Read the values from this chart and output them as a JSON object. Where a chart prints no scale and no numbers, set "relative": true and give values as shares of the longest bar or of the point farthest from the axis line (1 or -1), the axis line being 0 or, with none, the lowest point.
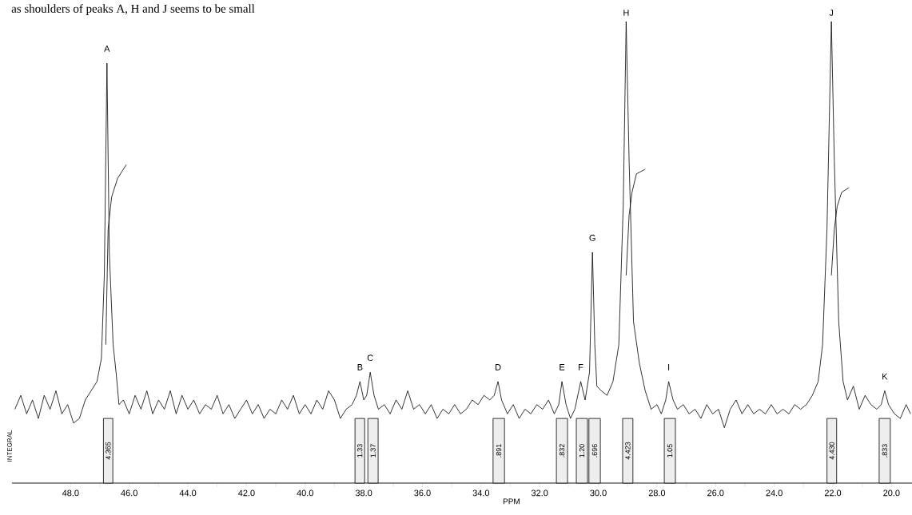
{
  "chart_data": {
    "type": "line",
    "relative": true,
    "title": "as shoulders of peaks A, H and J seems to be small",
    "xlabel": "PPM",
    "xlim": [
      50,
      19.3
    ],
    "xticks": [
      {
        "value": 48,
        "label": "48.0"
      },
      {
        "value": 47,
        "label": null
      },
      {
        "value": 46,
        "label": "46.0"
      },
      {
        "value": 45,
        "label": null
      },
      {
        "value": 44,
        "label": "44.0"
      },
      {
        "value": 43,
        "label": null
      },
      {
        "value": 42,
        "label": "42.0"
      },
      {
        "value": 41,
        "label": null
      },
      {
        "value": 40,
        "label": "40.0"
      },
      {
        "value": 39,
        "label": null
      },
      {
        "value": 38,
        "label": "38.0"
      },
      {
        "value": 37,
        "label": null
      },
      {
        "value": 36,
        "label": "36.0"
      },
      {
        "value": 35,
        "label": null
      },
      {
        "value": 34,
        "label": "34.0"
      },
      {
        "value": 33,
        "label": null
      },
      {
        "value": 32,
        "label": "32.0"
      },
      {
        "value": 31,
        "label": null
      },
      {
        "value": 30,
        "label": "30.0"
      },
      {
        "value": 29,
        "label": null
      },
      {
        "value": 28,
        "label": "28.0"
      },
      {
        "value": 27,
        "label": null
      },
      {
        "value": 26,
        "label": "26.0"
      },
      {
        "value": 25,
        "label": null
      },
      {
        "value": 24,
        "label": "24.0"
      },
      {
        "value": 23,
        "label": null
      },
      {
        "value": 22,
        "label": "22.0"
      },
      {
        "value": 21,
        "label": null
      },
      {
        "value": 20,
        "label": "20.0"
      }
    ],
    "tick_labels": "x",
    "series": [
      {
        "color": "#000000",
        "x": [
          49.9,
          49.7,
          49.5,
          49.3,
          49.1,
          48.9,
          48.7,
          48.5,
          48.3,
          48.1,
          47.9,
          47.7,
          47.5,
          47.3,
          47.1,
          46.95,
          46.85,
          46.76,
          46.68,
          46.55,
          46.45,
          46.35,
          46.2,
          46.0,
          45.8,
          45.6,
          45.4,
          45.2,
          45.0,
          44.8,
          44.6,
          44.4,
          44.2,
          44.0,
          43.8,
          43.6,
          43.4,
          43.2,
          43.0,
          42.8,
          42.6,
          42.4,
          42.2,
          42.0,
          41.8,
          41.6,
          41.4,
          41.2,
          41.0,
          40.8,
          40.6,
          40.4,
          40.2,
          40.0,
          39.8,
          39.6,
          39.4,
          39.2,
          39.0,
          38.8,
          38.6,
          38.4,
          38.25,
          38.13,
          38.0,
          37.9,
          37.78,
          37.65,
          37.5,
          37.3,
          37.1,
          36.9,
          36.7,
          36.5,
          36.3,
          36.1,
          35.9,
          35.7,
          35.5,
          35.3,
          35.1,
          34.9,
          34.7,
          34.5,
          34.3,
          34.1,
          33.9,
          33.7,
          33.55,
          33.42,
          33.3,
          33.1,
          32.9,
          32.7,
          32.5,
          32.3,
          32.1,
          31.9,
          31.7,
          31.5,
          31.35,
          31.24,
          31.1,
          30.95,
          30.8,
          30.6,
          30.45,
          30.3,
          30.2,
          30.12,
          30.05,
          29.9,
          29.7,
          29.5,
          29.3,
          29.15,
          29.05,
          28.95,
          28.8,
          28.6,
          28.4,
          28.2,
          28.0,
          27.85,
          27.7,
          27.6,
          27.45,
          27.3,
          27.1,
          26.9,
          26.7,
          26.5,
          26.3,
          26.1,
          25.9,
          25.7,
          25.5,
          25.3,
          25.1,
          24.9,
          24.7,
          24.5,
          24.3,
          24.1,
          23.9,
          23.7,
          23.5,
          23.3,
          23.1,
          22.9,
          22.7,
          22.5,
          22.35,
          22.2,
          22.05,
          21.95,
          21.8,
          21.65,
          21.5,
          21.3,
          21.1,
          20.9,
          20.7,
          20.5,
          20.35,
          20.23,
          20.1,
          19.9,
          19.7,
          19.5,
          19.35
        ],
        "values": [
          0.16,
          0.19,
          0.15,
          0.18,
          0.14,
          0.19,
          0.16,
          0.2,
          0.15,
          0.17,
          0.13,
          0.14,
          0.18,
          0.2,
          0.22,
          0.27,
          0.45,
          0.91,
          0.5,
          0.3,
          0.24,
          0.17,
          0.18,
          0.15,
          0.19,
          0.16,
          0.2,
          0.15,
          0.18,
          0.16,
          0.2,
          0.15,
          0.19,
          0.16,
          0.18,
          0.15,
          0.17,
          0.16,
          0.19,
          0.15,
          0.17,
          0.14,
          0.16,
          0.18,
          0.15,
          0.17,
          0.14,
          0.16,
          0.15,
          0.18,
          0.16,
          0.19,
          0.15,
          0.17,
          0.15,
          0.18,
          0.16,
          0.2,
          0.18,
          0.14,
          0.16,
          0.17,
          0.19,
          0.22,
          0.18,
          0.19,
          0.24,
          0.19,
          0.16,
          0.17,
          0.15,
          0.18,
          0.16,
          0.2,
          0.16,
          0.17,
          0.15,
          0.17,
          0.14,
          0.16,
          0.15,
          0.17,
          0.15,
          0.16,
          0.18,
          0.17,
          0.19,
          0.18,
          0.19,
          0.22,
          0.18,
          0.15,
          0.17,
          0.14,
          0.16,
          0.15,
          0.17,
          0.16,
          0.18,
          0.15,
          0.17,
          0.22,
          0.17,
          0.14,
          0.16,
          0.22,
          0.18,
          0.24,
          0.5,
          0.3,
          0.21,
          0.2,
          0.19,
          0.22,
          0.3,
          0.6,
          1.0,
          0.7,
          0.35,
          0.26,
          0.2,
          0.16,
          0.17,
          0.15,
          0.18,
          0.22,
          0.18,
          0.16,
          0.17,
          0.15,
          0.16,
          0.14,
          0.17,
          0.15,
          0.16,
          0.12,
          0.16,
          0.18,
          0.15,
          0.17,
          0.15,
          0.16,
          0.15,
          0.17,
          0.15,
          0.16,
          0.15,
          0.17,
          0.16,
          0.17,
          0.19,
          0.22,
          0.3,
          0.55,
          1.0,
          0.7,
          0.35,
          0.22,
          0.18,
          0.21,
          0.16,
          0.19,
          0.17,
          0.16,
          0.17,
          0.2,
          0.17,
          0.15,
          0.14,
          0.17,
          0.15
        ]
      },
      {
        "color": "#000000",
        "x": [
          46.8,
          46.72,
          46.6,
          46.4,
          46.1,
          46.05,
          29.05,
          28.95,
          28.85,
          28.7,
          28.4,
          28.3,
          22.05,
          21.95,
          21.85,
          21.7,
          21.45
        ],
        "values": [
          0.3,
          0.55,
          0.62,
          0.66,
          0.69,
          null,
          0.45,
          0.58,
          0.63,
          0.67,
          0.68,
          null,
          0.45,
          0.55,
          0.6,
          0.63,
          0.64
        ]
      }
    ],
    "bands": [
      {
        "axis": "x",
        "from": 46.88,
        "to": 46.56,
        "label": "4.365",
        "color": "#eeeeee"
      },
      {
        "axis": "x",
        "from": 38.3,
        "to": 37.97,
        "label": "1.33",
        "color": "#eeeeee"
      },
      {
        "axis": "x",
        "from": 37.86,
        "to": 37.51,
        "label": "1.37",
        "color": "#eeeeee"
      },
      {
        "axis": "x",
        "from": 33.59,
        "to": 33.2,
        "label": ".891",
        "color": "#eeeeee"
      },
      {
        "axis": "x",
        "from": 31.43,
        "to": 31.05,
        "label": ".832",
        "color": "#eeeeee"
      },
      {
        "axis": "x",
        "from": 30.75,
        "to": 30.37,
        "label": "1.20",
        "color": "#eeeeee"
      },
      {
        "axis": "x",
        "from": 30.32,
        "to": 29.93,
        "label": ".696",
        "color": "#eeeeee"
      },
      {
        "axis": "x",
        "from": 29.17,
        "to": 28.82,
        "label": "4.423",
        "color": "#eeeeee"
      },
      {
        "axis": "x",
        "from": 27.75,
        "to": 27.37,
        "label": "1.05",
        "color": "#eeeeee"
      },
      {
        "axis": "x",
        "from": 22.2,
        "to": 21.87,
        "label": "4.430",
        "color": "#eeeeee"
      },
      {
        "axis": "x",
        "from": 20.42,
        "to": 20.04,
        "label": ".833",
        "color": "#eeeeee"
      }
    ],
    "annotations": [
      {
        "text": "A",
        "x": 46.76,
        "y": 0.91
      },
      {
        "text": "B",
        "x": 38.13,
        "y": 0.22
      },
      {
        "text": "C",
        "x": 37.78,
        "y": 0.24
      },
      {
        "text": "D",
        "x": 33.42,
        "y": 0.22
      },
      {
        "text": "E",
        "x": 31.24,
        "y": 0.22
      },
      {
        "text": "F",
        "x": 30.6,
        "y": 0.22
      },
      {
        "text": "G",
        "x": 30.2,
        "y": 0.5
      },
      {
        "text": "H",
        "x": 29.05,
        "y": 1.0
      },
      {
        "text": "I",
        "x": 27.6,
        "y": 0.22
      },
      {
        "text": "J",
        "x": 22.05,
        "y": 1.0
      },
      {
        "text": "K",
        "x": 20.23,
        "y": 0.2
      },
      "INTEGRAL"
    ]
  }
}
